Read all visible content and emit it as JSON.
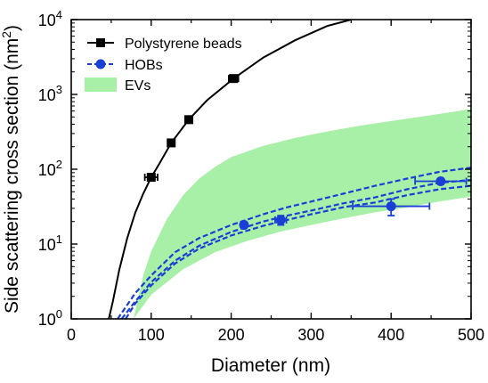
{
  "chart_data": {
    "type": "scatter",
    "xlabel": "Diameter (nm)",
    "ylabel": "Side scattering cross section (nm",
    "ylabel_sup": "2",
    "ylabel_close": ")",
    "xlim": [
      0,
      500
    ],
    "ylim": [
      1,
      10000
    ],
    "y_scale": "log",
    "grid": false,
    "legend_position": "top-left",
    "x_ticks": [
      "0",
      "100",
      "200",
      "300",
      "400",
      "500"
    ],
    "y_ticks": [
      {
        "base": "10",
        "exp": "0"
      },
      {
        "base": "10",
        "exp": "1"
      },
      {
        "base": "10",
        "exp": "2"
      },
      {
        "base": "10",
        "exp": "3"
      },
      {
        "base": "10",
        "exp": "4"
      }
    ],
    "series": [
      {
        "name": "Polystyrene beads",
        "color": "#000000",
        "marker": "square",
        "line": "solid",
        "points": [
          {
            "x": 100,
            "y": 78,
            "xerr": 8
          },
          {
            "x": 125,
            "y": 225,
            "xerr": 3
          },
          {
            "x": 147,
            "y": 460,
            "xerr": 3
          },
          {
            "x": 203,
            "y": 1630,
            "xerr": 6
          }
        ],
        "curve": {
          "x": [
            47,
            52,
            60,
            70,
            80,
            90,
            100,
            110,
            125,
            147,
            170,
            203,
            240,
            280,
            320,
            350
          ],
          "y": [
            1,
            1.7,
            4.5,
            12,
            26,
            47,
            78,
            118,
            225,
            460,
            840,
            1630,
            3100,
            5300,
            8200,
            10000
          ]
        }
      },
      {
        "name": "HOBs",
        "color": "#1a3fd6",
        "marker": "circle",
        "line": "dashed",
        "points": [
          {
            "x": 216,
            "y": 18,
            "xerr": 0,
            "yerr": 1.5
          },
          {
            "x": 262,
            "y": 21,
            "xerr": 7,
            "yerr": 3
          },
          {
            "x": 400,
            "y": 32,
            "xerr": 48,
            "yerr": 8
          },
          {
            "x": 462,
            "y": 69,
            "xerr": 32,
            "yerr": 6
          }
        ],
        "curves": [
          {
            "x": [
              63,
              80,
              100,
              130,
              160,
              200,
              240,
              270,
              300,
              340,
              380,
              420,
              460,
              500
            ],
            "y": [
              1,
              1.7,
              3.1,
              6,
              9.5,
              14.5,
              20,
              24,
              28,
              35,
              42,
              54,
              66,
              72
            ]
          },
          {
            "x": [
              68,
              80,
              100,
              130,
              160,
              200,
              240,
              270,
              300,
              340,
              380,
              420,
              460,
              500
            ],
            "y": [
              1,
              1.6,
              2.8,
              5.5,
              8.7,
              13,
              17.5,
              21,
              25,
              31,
              36,
              45,
              54,
              60
            ]
          },
          {
            "x": [
              58,
              80,
              100,
              130,
              160,
              200,
              240,
              270,
              300,
              340,
              380,
              420,
              460,
              500
            ],
            "y": [
              1,
              2.2,
              3.8,
              7.8,
              12,
              18,
              25,
              31,
              37,
              47,
              60,
              75,
              92,
              105
            ]
          }
        ]
      },
      {
        "name": "EVs",
        "color": "#a8f0a8",
        "type": "area",
        "upper": {
          "x": [
            78,
            90,
            100,
            120,
            140,
            160,
            180,
            200,
            240,
            280,
            320,
            360,
            400,
            440,
            480,
            500
          ],
          "y": [
            1,
            3.8,
            8,
            22,
            45,
            75,
            108,
            145,
            205,
            262,
            320,
            380,
            440,
            510,
            590,
            640
          ]
        },
        "lower": {
          "x": [
            78,
            100,
            140,
            180,
            220,
            260,
            300,
            340,
            380,
            420,
            460,
            500
          ],
          "y": [
            1,
            2.1,
            4.6,
            7.8,
            11,
            14.5,
            18,
            22,
            26.5,
            31,
            37,
            43
          ]
        }
      }
    ]
  }
}
